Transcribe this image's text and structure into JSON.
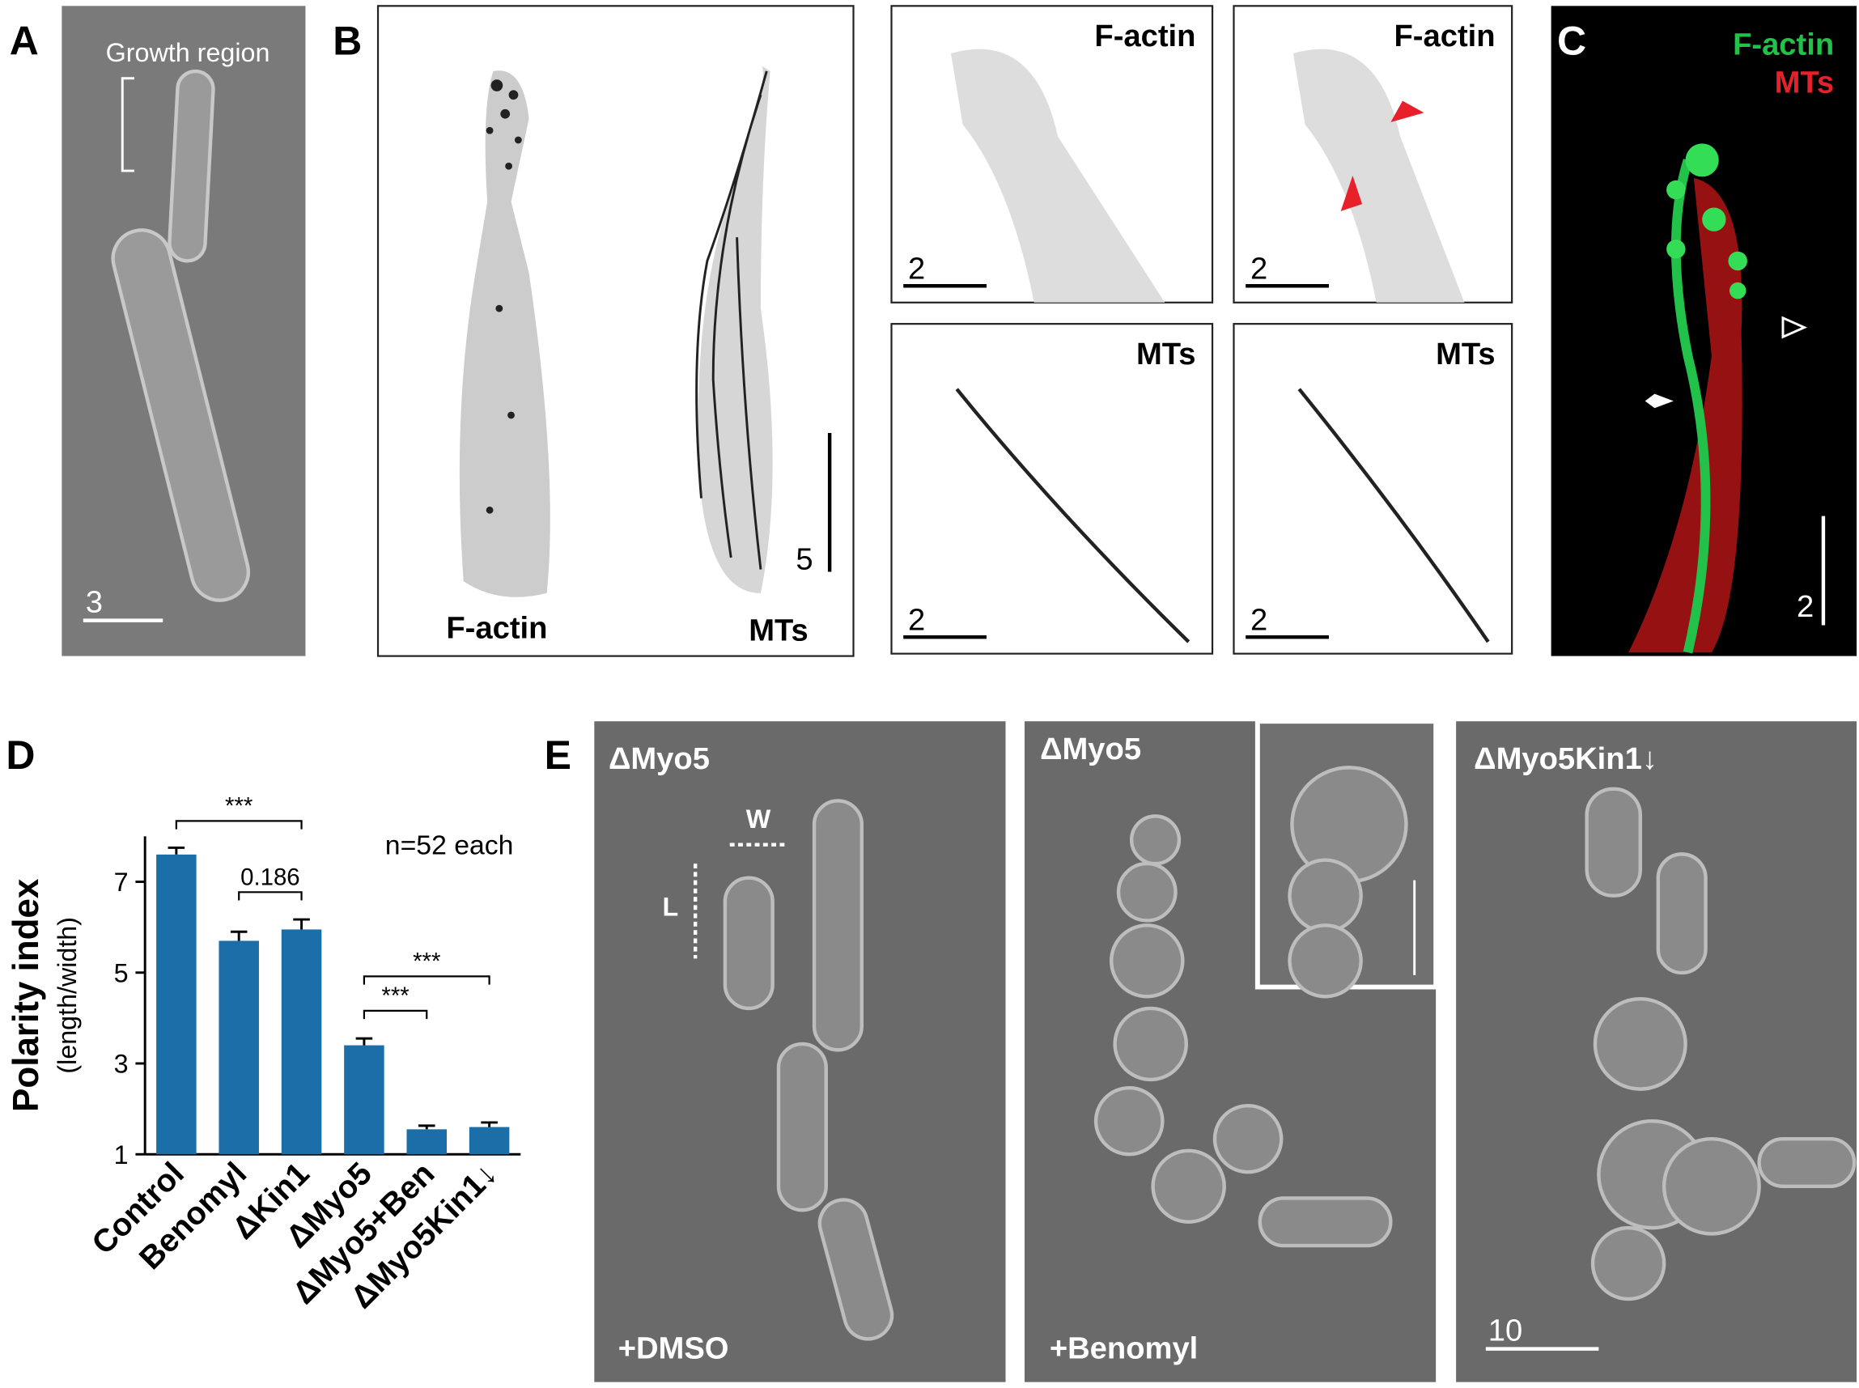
{
  "panel_a": {
    "label": "A",
    "annotation": "Growth region",
    "scale_bar": "3"
  },
  "panel_b": {
    "label": "B",
    "main_labels": [
      "F-actin",
      "MTs"
    ],
    "main_scale_bar": "5",
    "insets": [
      {
        "label": "F-actin",
        "scale_bar": "2"
      },
      {
        "label": "F-actin",
        "scale_bar": "2"
      },
      {
        "label": "MTs",
        "scale_bar": "2"
      },
      {
        "label": "MTs",
        "scale_bar": "2"
      }
    ]
  },
  "panel_c": {
    "label": "C",
    "channels": [
      {
        "name": "F-actin",
        "color": "#22c24a"
      },
      {
        "name": "MTs",
        "color": "#e8202a"
      }
    ],
    "scale_bar": "2"
  },
  "chart_data": {
    "type": "bar",
    "panel_label": "D",
    "y_label": "Polarity index",
    "y_sublabel": "(length/width)",
    "categories": [
      "Control",
      "Benomyl",
      "ΔKin1",
      "ΔMyo5",
      "ΔMyo5+Ben",
      "ΔMyo5Kin1↓"
    ],
    "values": [
      7.6,
      5.7,
      5.95,
      3.4,
      1.55,
      1.6
    ],
    "errors": [
      0.15,
      0.2,
      0.22,
      0.15,
      0.08,
      0.1
    ],
    "color": "#1b6ea8",
    "ylim": [
      1,
      8
    ],
    "yticks": [
      1,
      3,
      5,
      7
    ],
    "significance": [
      "***",
      "0.186",
      "***",
      "***"
    ],
    "note": "n=52 each"
  },
  "panel_e": {
    "label": "E",
    "images": [
      {
        "title": "ΔMyo5",
        "condition": "+DMSO"
      },
      {
        "title": "ΔMyo5",
        "condition": "+Benomyl"
      },
      {
        "title": "ΔMyo5Kin1↓"
      }
    ],
    "width_label": "W",
    "length_label": "L",
    "scale_bar": "10"
  }
}
